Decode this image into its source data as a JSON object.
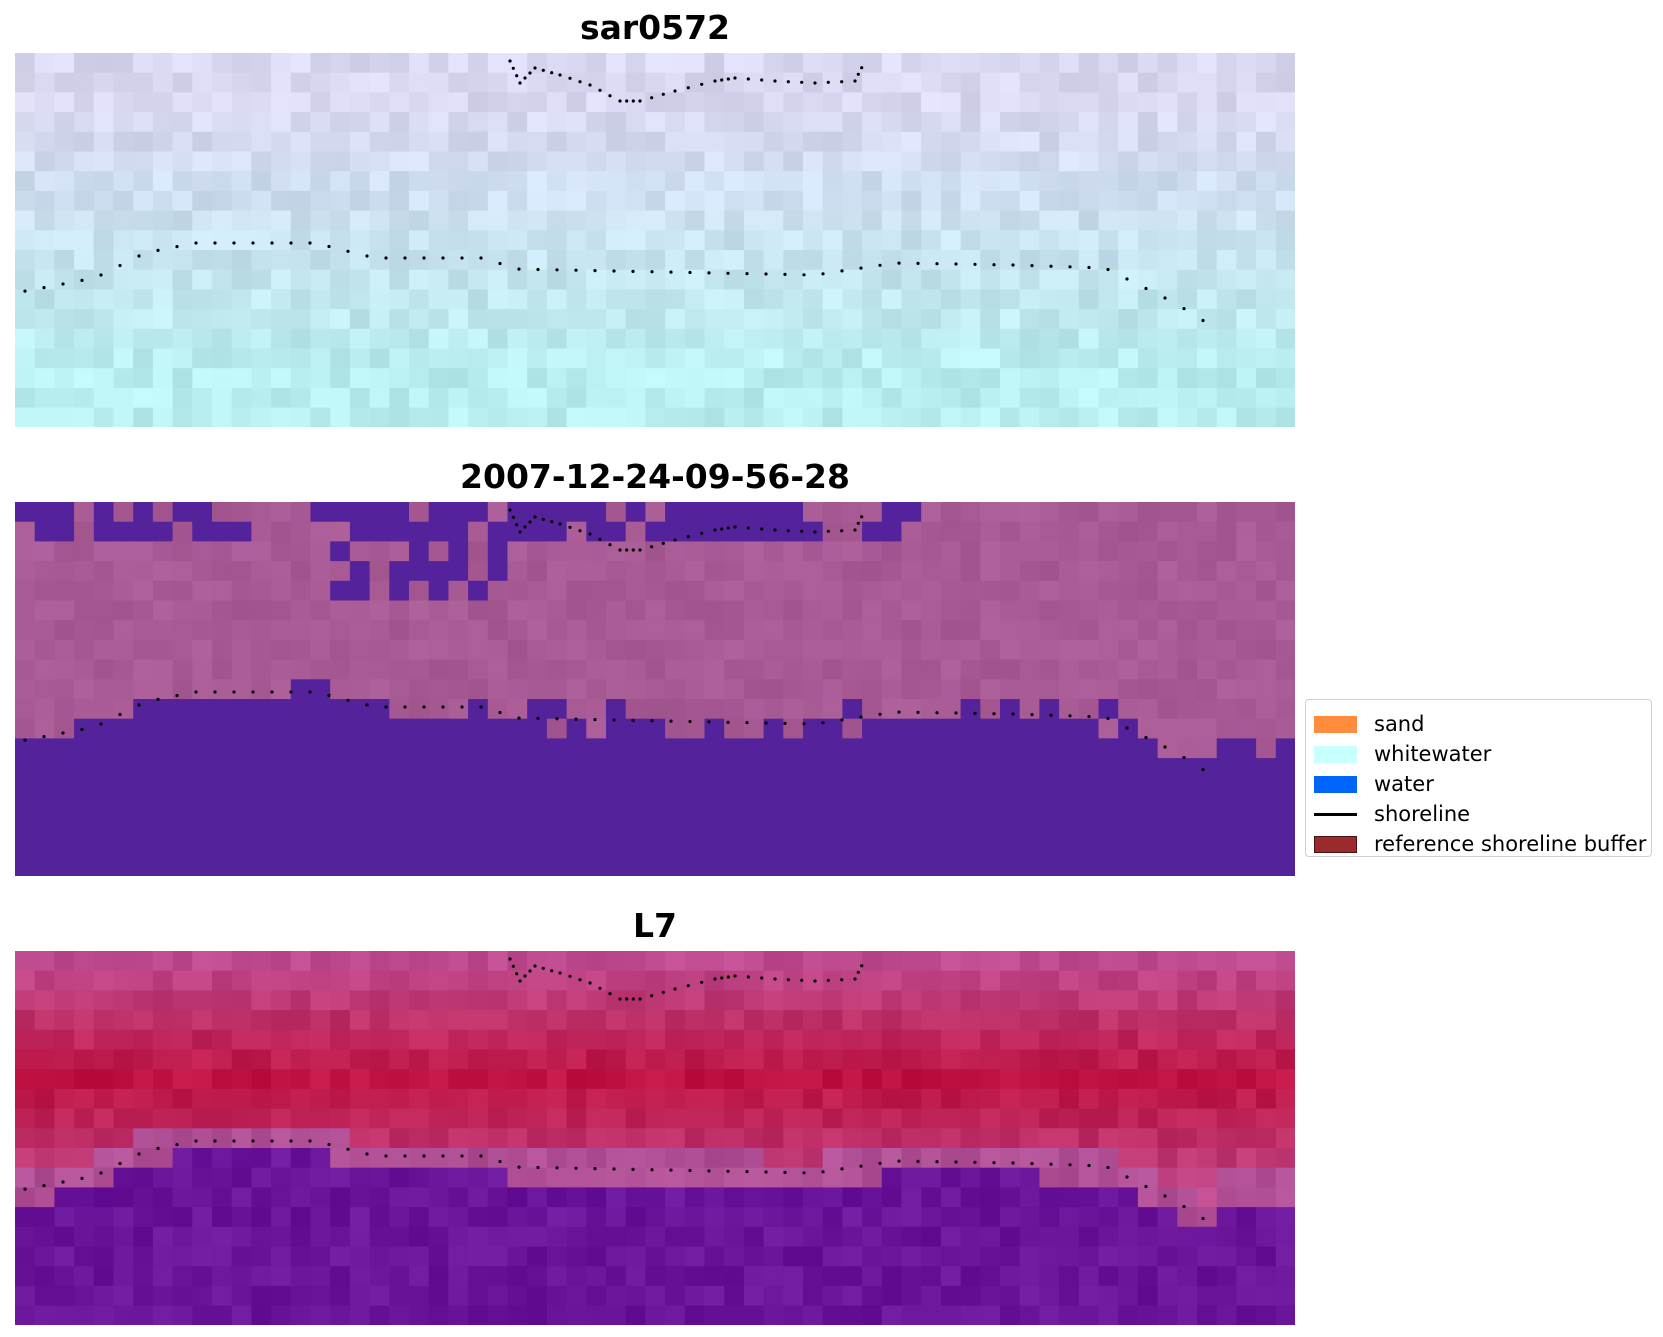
{
  "panels": [
    {
      "title": "sar0572",
      "style": "sar"
    },
    {
      "title": "2007-12-24-09-56-28",
      "style": "classified"
    },
    {
      "title": "L7",
      "style": "landsat"
    }
  ],
  "legend": {
    "items": [
      {
        "label": "sand",
        "kind": "patch",
        "color": "#ff8c3c"
      },
      {
        "label": "whitewater",
        "kind": "patch",
        "color": "#c8ffff"
      },
      {
        "label": "water",
        "kind": "patch",
        "color": "#0064ff"
      },
      {
        "label": "shoreline",
        "kind": "line",
        "color": "#000000"
      },
      {
        "label": "reference shoreline buffer",
        "kind": "patch",
        "color": "#9b2a2d"
      }
    ]
  },
  "colors": {
    "classified_water": "#54229a",
    "classified_land": "#a85a94",
    "landsat_red": "#bf1240",
    "landsat_purple": "#6a149a",
    "sar_cyan": "#b8eeee",
    "sar_lavender": "#d9d8f2"
  }
}
